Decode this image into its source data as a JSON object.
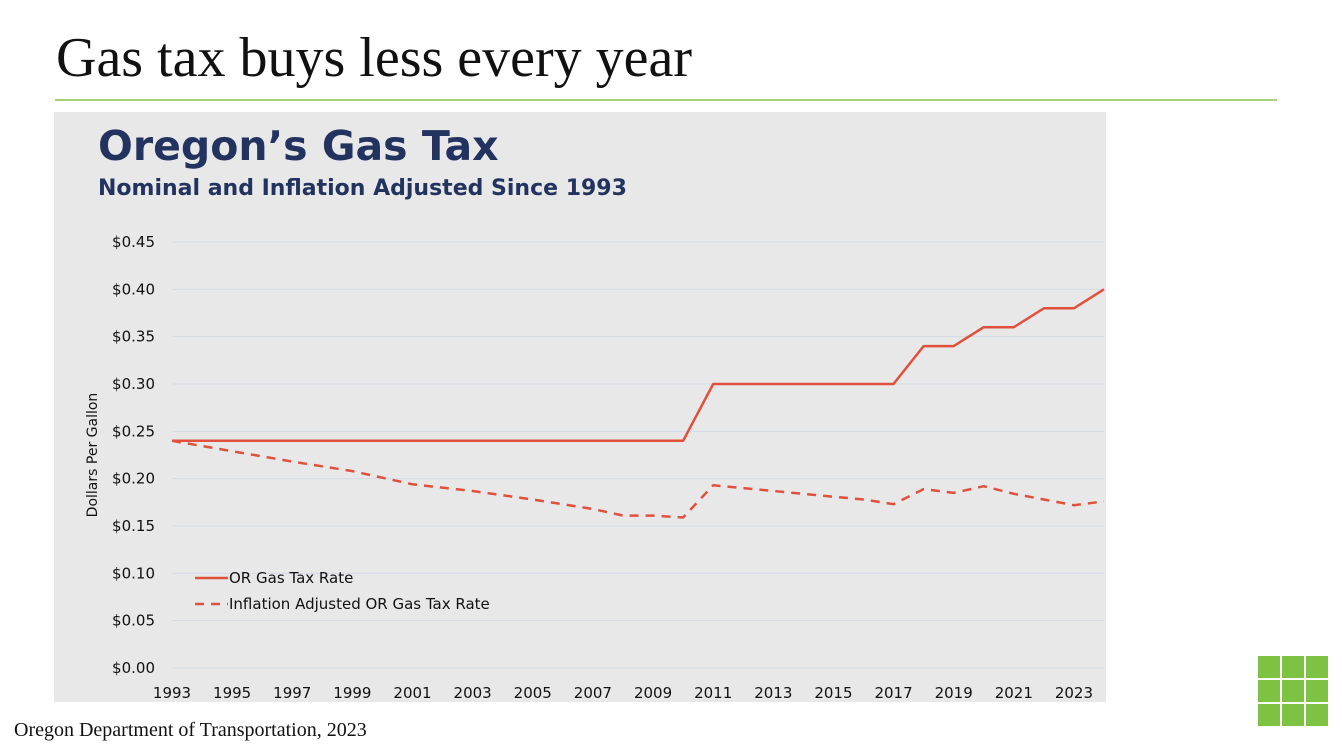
{
  "slide": {
    "title": "Gas tax buys less every year",
    "source": "Oregon Department of Transportation, 2023",
    "accent_color": "#a9cf7b"
  },
  "chart_data": {
    "type": "line",
    "title": "Oregon’s Gas Tax",
    "subtitle": "Nominal and Inflation Adjusted Since 1993",
    "ylabel": "Dollars Per Gallon",
    "xlabel": "",
    "xlim": [
      1993,
      2024
    ],
    "ylim": [
      0,
      0.45
    ],
    "yticks": [
      "$0.00",
      "$0.05",
      "$0.10",
      "$0.15",
      "$0.20",
      "$0.25",
      "$0.30",
      "$0.35",
      "$0.40",
      "$0.45"
    ],
    "xticks": [
      "1993",
      "1995",
      "1997",
      "1999",
      "2001",
      "2003",
      "2005",
      "2007",
      "2009",
      "2011",
      "2013",
      "2015",
      "2017",
      "2019",
      "2021",
      "2023"
    ],
    "grid": true,
    "legend_position": "bottom-left",
    "series": [
      {
        "name": "OR Gas Tax Rate",
        "style": "solid",
        "color": "#e0503c",
        "x": [
          1993,
          2010,
          2011,
          2017,
          2018,
          2019,
          2020,
          2021,
          2022,
          2023,
          2024
        ],
        "y": [
          0.24,
          0.24,
          0.3,
          0.3,
          0.34,
          0.34,
          0.36,
          0.36,
          0.38,
          0.38,
          0.4
        ]
      },
      {
        "name": "Inflation Adjusted OR Gas Tax Rate",
        "style": "dashed",
        "color": "#e0503c",
        "x": [
          1993,
          1995,
          1997,
          1999,
          2001,
          2003,
          2005,
          2007,
          2008,
          2009,
          2010,
          2011,
          2013,
          2015,
          2016,
          2017,
          2018,
          2019,
          2020,
          2021,
          2022,
          2023,
          2024
        ],
        "y": [
          0.24,
          0.229,
          0.218,
          0.208,
          0.194,
          0.187,
          0.178,
          0.168,
          0.161,
          0.161,
          0.159,
          0.193,
          0.187,
          0.181,
          0.178,
          0.173,
          0.189,
          0.185,
          0.192,
          0.184,
          0.178,
          0.172,
          0.176
        ]
      }
    ]
  }
}
